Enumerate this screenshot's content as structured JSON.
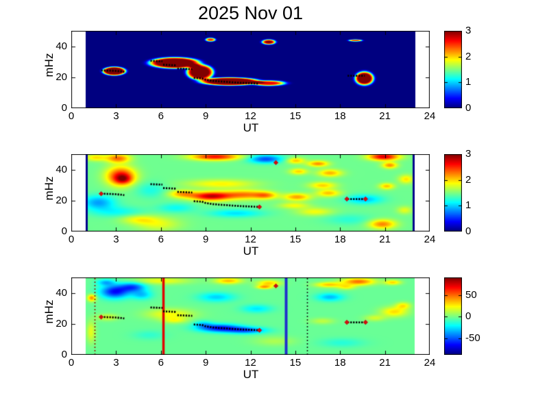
{
  "figure": {
    "title": "2025 Nov 01",
    "background_color": "#ffffff",
    "text_color": "#000000"
  },
  "chart_data": {
    "type": "heatmap",
    "title": "2025 Nov 01",
    "x_axis": {
      "label": "UT",
      "range": [
        0,
        24
      ],
      "ticks": [
        0,
        3,
        6,
        9,
        12,
        15,
        18,
        21,
        24
      ]
    },
    "y_axis": {
      "label": "mHz",
      "range": [
        0,
        50
      ],
      "ticks": [
        0,
        20,
        40
      ]
    },
    "legend_position": "right-colorbars",
    "grid": false,
    "trace_color": "#000000",
    "marker_color": "#cc1111",
    "trace_segments": [
      [
        [
          2.0,
          24.4
        ],
        [
          2.6,
          24.3
        ],
        [
          3.0,
          24.1
        ],
        [
          3.3,
          23.8
        ],
        [
          3.55,
          23.5
        ]
      ],
      [
        [
          5.3,
          30.6
        ],
        [
          6.1,
          30.3
        ]
      ],
      [
        [
          6.15,
          28.1
        ],
        [
          7.05,
          27.7
        ]
      ],
      [
        [
          7.1,
          25.6
        ],
        [
          8.1,
          25.2
        ]
      ],
      [
        [
          8.2,
          19.6
        ],
        [
          8.75,
          19.3
        ],
        [
          9.0,
          18.4
        ],
        [
          9.5,
          17.7
        ],
        [
          10.0,
          17.3
        ],
        [
          10.6,
          16.9
        ],
        [
          11.2,
          16.5
        ],
        [
          11.9,
          16.2
        ],
        [
          12.55,
          15.9
        ]
      ],
      [
        [
          18.5,
          21.0
        ],
        [
          19.65,
          21.0
        ]
      ]
    ],
    "diamond_markers": [
      [
        2.0,
        24.4
      ],
      [
        12.6,
        15.9
      ],
      [
        18.45,
        21.0
      ],
      [
        19.7,
        21.0
      ],
      [
        13.7,
        44.5
      ]
    ],
    "blob_format": "[time_UT_hours, frequency_mHz, sigma_t, sigma_f, amplitude, edge_steepness]",
    "panels": [
      {
        "position": "top",
        "clim": [
          0,
          3
        ],
        "base_value": 0,
        "data_time_range": [
          0.95,
          23.0
        ],
        "show_trace_markers": false,
        "colorbar_ticks": [
          {
            "value": 3,
            "label": "3"
          },
          {
            "value": 2,
            "label": "2"
          },
          {
            "value": 1,
            "label": "1"
          },
          {
            "value": 0,
            "label": "0"
          }
        ],
        "vlines": [],
        "blobs": [
          [
            2.85,
            24.2,
            0.78,
            2.8,
            3.4,
            6
          ],
          [
            6.9,
            29.5,
            1.7,
            3.6,
            3.4,
            6
          ],
          [
            8.6,
            23.5,
            0.9,
            5.0,
            3.2,
            6
          ],
          [
            10.6,
            17.5,
            2.0,
            2.6,
            3.4,
            6
          ],
          [
            13.2,
            16.4,
            1.1,
            1.7,
            2.7,
            4
          ],
          [
            9.3,
            44.5,
            0.33,
            1.2,
            2.5,
            4
          ],
          [
            13.2,
            43.0,
            0.45,
            1.6,
            3.0,
            4
          ],
          [
            19.0,
            44.0,
            0.45,
            0.7,
            2.4,
            4
          ],
          [
            19.6,
            19.5,
            0.62,
            4.4,
            3.4,
            5
          ]
        ]
      },
      {
        "position": "middle",
        "clim": [
          0,
          3
        ],
        "base_value": 1.45,
        "data_time_range": [
          1.0,
          22.9
        ],
        "show_trace_markers": true,
        "colorbar_ticks": [
          {
            "value": 3,
            "label": "3"
          },
          {
            "value": 2,
            "label": "2"
          },
          {
            "value": 1,
            "label": "1"
          },
          {
            "value": 0,
            "label": "0"
          }
        ],
        "vlines": [
          {
            "t": 1.0,
            "color": "#00008b",
            "width": 3,
            "dash": null
          },
          {
            "t": 22.9,
            "color": "#00008b",
            "width": 3,
            "dash": null
          }
        ],
        "blobs": [
          [
            3.3,
            36,
            0.95,
            6.0,
            1.15,
            2
          ],
          [
            3.45,
            34,
            0.55,
            3.0,
            0.6,
            2
          ],
          [
            3.1,
            47.5,
            0.8,
            2.8,
            0.85,
            2
          ],
          [
            1.6,
            48,
            0.7,
            2.2,
            0.5,
            2
          ],
          [
            1.8,
            19,
            1.1,
            4.5,
            -0.6,
            2
          ],
          [
            3.0,
            13,
            1.7,
            3.5,
            -0.3,
            2
          ],
          [
            4.5,
            8,
            1.2,
            3.0,
            0.38,
            2
          ],
          [
            5.8,
            5,
            1.5,
            4.5,
            0.35,
            2
          ],
          [
            5.3,
            27,
            1.0,
            5.0,
            -0.25,
            2
          ],
          [
            7.0,
            15.5,
            1.2,
            3.0,
            -0.3,
            2
          ],
          [
            7.4,
            24.5,
            0.9,
            2.5,
            0.65,
            2
          ],
          [
            9.3,
            23,
            1.3,
            2.8,
            1.3,
            2
          ],
          [
            11.6,
            24,
            1.6,
            3.0,
            0.8,
            2
          ],
          [
            10.0,
            31,
            2.3,
            2.8,
            0.45,
            2
          ],
          [
            9.6,
            48.5,
            1.6,
            2.2,
            1.15,
            2
          ],
          [
            13.0,
            47,
            1.1,
            2.6,
            -0.85,
            2
          ],
          [
            11.0,
            12,
            1.8,
            2.6,
            -0.4,
            2
          ],
          [
            13.0,
            23.5,
            0.7,
            2.2,
            0.55,
            2
          ],
          [
            15.0,
            46,
            0.6,
            2.0,
            0.6,
            2
          ],
          [
            15.2,
            39,
            0.6,
            2.0,
            0.55,
            2
          ],
          [
            16.5,
            44,
            0.7,
            1.9,
            0.75,
            2
          ],
          [
            17.3,
            38,
            0.8,
            2.4,
            0.65,
            2
          ],
          [
            16.8,
            30,
            0.9,
            2.3,
            0.55,
            2
          ],
          [
            15.1,
            22.5,
            0.9,
            2.4,
            0.7,
            2
          ],
          [
            17.2,
            25,
            0.8,
            2.3,
            0.6,
            2
          ],
          [
            14.9,
            17,
            1.0,
            2.0,
            0.4,
            2
          ],
          [
            16.3,
            13,
            1.2,
            2.6,
            0.4,
            2
          ],
          [
            19.6,
            21,
            1.2,
            3.0,
            -0.5,
            2
          ],
          [
            18.6,
            8,
            1.6,
            3.5,
            -0.2,
            2
          ],
          [
            20.9,
            48.5,
            1.0,
            2.3,
            1.3,
            2
          ],
          [
            21.3,
            43,
            0.5,
            2.0,
            0.75,
            2
          ],
          [
            21.1,
            29.5,
            0.5,
            2.0,
            0.6,
            2
          ],
          [
            20.8,
            5,
            0.9,
            3.0,
            0.8,
            2
          ],
          [
            22.4,
            34,
            0.5,
            2.8,
            0.5,
            2
          ],
          [
            22.3,
            14,
            0.5,
            2.5,
            0.35,
            2
          ]
        ]
      },
      {
        "position": "bottom",
        "clim": [
          -89,
          91
        ],
        "base_value": -3,
        "data_time_range": [
          0.95,
          22.95
        ],
        "show_trace_markers": true,
        "colorbar_ticks": [
          {
            "value": 50,
            "label": "50"
          },
          {
            "value": 0,
            "label": "0"
          },
          {
            "value": -50,
            "label": "-50"
          }
        ],
        "vlines": [
          {
            "t": 1.55,
            "color": "#8b1a00",
            "width": 1.6,
            "dash": [
              2,
              3
            ]
          },
          {
            "t": 6.15,
            "color": "#e00000",
            "width": 3.5,
            "dash": null
          },
          {
            "t": 14.35,
            "color": "#2030cc",
            "width": 4,
            "dash": null
          },
          {
            "t": 15.8,
            "color": "#151515",
            "width": 1.6,
            "dash": [
              2,
              3
            ]
          }
        ],
        "blobs": [
          [
            2.9,
            41,
            0.95,
            4.2,
            -62,
            2
          ],
          [
            4.1,
            44,
            0.85,
            3.0,
            -48,
            2
          ],
          [
            2.3,
            47,
            0.6,
            2.0,
            -30,
            2
          ],
          [
            4.7,
            39,
            0.7,
            3.0,
            -28,
            2
          ],
          [
            1.35,
            37,
            0.28,
            2.2,
            48,
            2
          ],
          [
            1.3,
            15,
            0.3,
            7.0,
            22,
            2
          ],
          [
            2.4,
            24.5,
            0.7,
            2.2,
            20,
            2
          ],
          [
            5.2,
            13,
            1.1,
            3.0,
            -10,
            2
          ],
          [
            6.0,
            48,
            1.9,
            2.3,
            24,
            2
          ],
          [
            6.6,
            26.5,
            1.6,
            3.5,
            26,
            2
          ],
          [
            6.9,
            22.5,
            0.8,
            2.0,
            20,
            2
          ],
          [
            9.7,
            37.5,
            1.2,
            3.0,
            -26,
            2
          ],
          [
            10.5,
            48,
            0.9,
            2.0,
            38,
            2
          ],
          [
            9.9,
            17.5,
            1.4,
            2.5,
            -62,
            2
          ],
          [
            11.7,
            16,
            1.3,
            2.1,
            -46,
            2
          ],
          [
            8.8,
            20,
            0.6,
            2.2,
            -24,
            2
          ],
          [
            13.2,
            46.5,
            0.8,
            2.0,
            35,
            2
          ],
          [
            12.9,
            44,
            0.5,
            1.2,
            40,
            2
          ],
          [
            12.4,
            30,
            1.0,
            2.6,
            -22,
            2
          ],
          [
            13.6,
            9,
            1.4,
            3.0,
            12,
            2
          ],
          [
            16.8,
            22,
            0.8,
            2.0,
            15,
            2
          ],
          [
            17.2,
            45.5,
            0.9,
            1.7,
            36,
            2
          ],
          [
            17.3,
            37.5,
            0.9,
            2.6,
            -30,
            2
          ],
          [
            18.4,
            44,
            0.6,
            1.6,
            25,
            2
          ],
          [
            19.2,
            47.5,
            1.1,
            2.3,
            52,
            2
          ],
          [
            21.5,
            47,
            0.55,
            1.6,
            33,
            2
          ],
          [
            21.6,
            28,
            0.9,
            3.2,
            32,
            2
          ],
          [
            22.2,
            32,
            0.5,
            2.2,
            28,
            2
          ],
          [
            20.3,
            24,
            0.7,
            2.0,
            18,
            2
          ],
          [
            18.1,
            8,
            1.5,
            3.0,
            -12,
            2
          ]
        ]
      }
    ]
  }
}
